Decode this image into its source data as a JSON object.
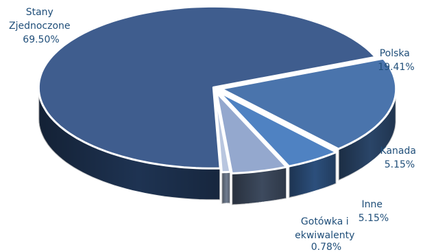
{
  "chart_data": {
    "type": "pie",
    "style": "3d-exploded",
    "categories": [
      "Polska",
      "Kanada",
      "Inne",
      "Gotówka i ekwiwalenty",
      "Stany Zjednoczone"
    ],
    "values": [
      19.41,
      5.15,
      5.15,
      0.78,
      69.5
    ],
    "value_labels": [
      "19.41%",
      "5.15%",
      "5.15%",
      "0.78%",
      "69.50%"
    ],
    "label_lines": [
      [
        "Polska"
      ],
      [
        "Kanada"
      ],
      [
        "Inne"
      ],
      [
        "Gotówka i",
        "ekwiwalenty"
      ],
      [
        "Stany",
        "Zjednoczone"
      ]
    ],
    "colors": {
      "top": [
        "#4a74ac",
        "#4f82c2",
        "#94a8ce",
        "#b9c6df",
        "#3f5d8e"
      ],
      "side": [
        "#2a4568",
        "#2c4f7c",
        "#3d4a5e",
        "#707c8f",
        "#1e3352"
      ]
    },
    "legend": "none"
  }
}
